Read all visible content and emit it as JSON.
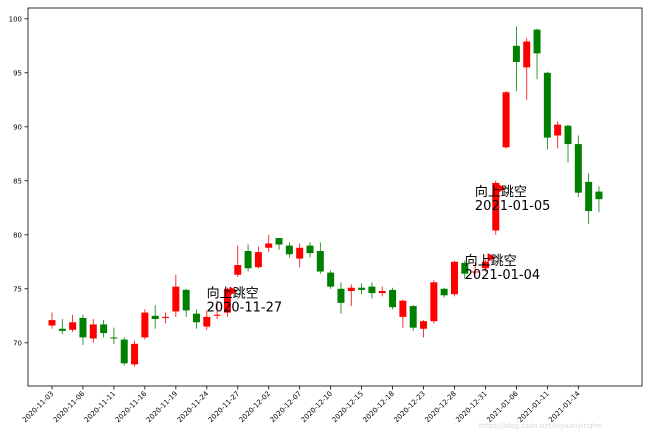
{
  "chart_data": {
    "type": "candlestick",
    "title": "",
    "xlabel": "",
    "ylabel": "",
    "ylim": [
      66,
      101
    ],
    "yticks": [
      70,
      75,
      80,
      85,
      90,
      95,
      100
    ],
    "colors": {
      "up": "#ff0000",
      "down": "#008000",
      "marker": "#ff0000"
    },
    "x_tick_labels": [
      "2020-11-03",
      "2020-11-06",
      "2020-11-11",
      "2020-11-16",
      "2020-11-19",
      "2020-11-24",
      "2020-11-27",
      "2020-12-02",
      "2020-12-07",
      "2020-12-10",
      "2020-12-15",
      "2020-12-18",
      "2020-12-23",
      "2020-12-28",
      "2020-12-31",
      "2021-01-06",
      "2021-01-11",
      "2021-01-14"
    ],
    "x_tick_index": [
      0,
      3,
      6,
      9,
      12,
      15,
      18,
      21,
      24,
      27,
      30,
      33,
      36,
      39,
      42,
      45,
      48,
      51
    ],
    "candles": [
      {
        "date": "2020-11-03",
        "open": 71.6,
        "close": 72.1,
        "high": 72.8,
        "low": 71.3
      },
      {
        "date": "2020-11-04",
        "open": 71.3,
        "close": 71.1,
        "high": 72.2,
        "low": 70.8
      },
      {
        "date": "2020-11-05",
        "open": 71.2,
        "close": 71.9,
        "high": 72.6,
        "low": 71.0
      },
      {
        "date": "2020-11-06",
        "open": 72.3,
        "close": 70.5,
        "high": 72.6,
        "low": 69.8
      },
      {
        "date": "2020-11-09",
        "open": 70.4,
        "close": 71.7,
        "high": 72.2,
        "low": 70.0
      },
      {
        "date": "2020-11-10",
        "open": 71.7,
        "close": 70.9,
        "high": 72.1,
        "low": 70.5
      },
      {
        "date": "2020-11-11",
        "open": 70.5,
        "close": 70.4,
        "high": 71.4,
        "low": 69.9
      },
      {
        "date": "2020-11-12",
        "open": 70.3,
        "close": 68.1,
        "high": 70.5,
        "low": 67.9
      },
      {
        "date": "2020-11-13",
        "open": 68.0,
        "close": 69.9,
        "high": 70.2,
        "low": 67.8
      },
      {
        "date": "2020-11-16",
        "open": 70.5,
        "close": 72.8,
        "high": 73.1,
        "low": 70.3
      },
      {
        "date": "2020-11-17",
        "open": 72.5,
        "close": 72.2,
        "high": 73.5,
        "low": 71.3
      },
      {
        "date": "2020-11-18",
        "open": 72.3,
        "close": 72.4,
        "high": 72.8,
        "low": 71.8
      },
      {
        "date": "2020-11-19",
        "open": 72.9,
        "close": 75.2,
        "high": 76.3,
        "low": 72.4
      },
      {
        "date": "2020-11-20",
        "open": 74.9,
        "close": 73.0,
        "high": 75.0,
        "low": 72.4
      },
      {
        "date": "2020-11-23",
        "open": 72.7,
        "close": 71.9,
        "high": 73.1,
        "low": 71.3
      },
      {
        "date": "2020-11-24",
        "open": 71.5,
        "close": 72.4,
        "high": 73.0,
        "low": 71.2
      },
      {
        "date": "2020-11-25",
        "open": 72.5,
        "close": 72.6,
        "high": 73.9,
        "low": 72.2
      },
      {
        "date": "2020-11-26",
        "open": 72.8,
        "close": 75.0,
        "high": 75.1,
        "low": 72.4
      },
      {
        "date": "2020-11-27",
        "open": 76.3,
        "close": 77.2,
        "high": 79.0,
        "low": 76.1
      },
      {
        "date": "2020-11-30",
        "open": 78.5,
        "close": 76.9,
        "high": 79.1,
        "low": 76.6
      },
      {
        "date": "2020-12-01",
        "open": 77.0,
        "close": 78.4,
        "high": 78.9,
        "low": 76.9
      },
      {
        "date": "2020-12-02",
        "open": 78.8,
        "close": 79.2,
        "high": 80.0,
        "low": 78.4
      },
      {
        "date": "2020-12-03",
        "open": 79.7,
        "close": 79.1,
        "high": 79.7,
        "low": 78.6
      },
      {
        "date": "2020-12-04",
        "open": 79.0,
        "close": 78.2,
        "high": 79.3,
        "low": 77.9
      },
      {
        "date": "2020-12-07",
        "open": 77.8,
        "close": 78.8,
        "high": 79.2,
        "low": 77.0
      },
      {
        "date": "2020-12-08",
        "open": 79.0,
        "close": 78.3,
        "high": 79.3,
        "low": 77.9
      },
      {
        "date": "2020-12-09",
        "open": 78.5,
        "close": 76.6,
        "high": 79.3,
        "low": 76.4
      },
      {
        "date": "2020-12-10",
        "open": 76.5,
        "close": 75.2,
        "high": 76.7,
        "low": 75.0
      },
      {
        "date": "2020-12-11",
        "open": 75.0,
        "close": 73.7,
        "high": 75.6,
        "low": 72.7
      },
      {
        "date": "2020-12-14",
        "open": 74.8,
        "close": 75.1,
        "high": 75.4,
        "low": 73.4
      },
      {
        "date": "2020-12-15",
        "open": 75.1,
        "close": 74.9,
        "high": 75.5,
        "low": 74.5
      },
      {
        "date": "2020-12-16",
        "open": 75.2,
        "close": 74.6,
        "high": 75.6,
        "low": 74.1
      },
      {
        "date": "2020-12-17",
        "open": 74.6,
        "close": 74.8,
        "high": 75.2,
        "low": 74.3
      },
      {
        "date": "2020-12-18",
        "open": 74.9,
        "close": 73.3,
        "high": 75.1,
        "low": 73.1
      },
      {
        "date": "2020-12-21",
        "open": 72.4,
        "close": 73.9,
        "high": 74.0,
        "low": 71.4
      },
      {
        "date": "2020-12-22",
        "open": 73.4,
        "close": 71.4,
        "high": 73.5,
        "low": 71.1
      },
      {
        "date": "2020-12-23",
        "open": 71.3,
        "close": 72.0,
        "high": 72.1,
        "low": 70.5
      },
      {
        "date": "2020-12-24",
        "open": 72.0,
        "close": 75.6,
        "high": 75.8,
        "low": 71.8
      },
      {
        "date": "2020-12-25",
        "open": 75.0,
        "close": 74.4,
        "high": 75.1,
        "low": 74.2
      },
      {
        "date": "2020-12-28",
        "open": 74.5,
        "close": 77.5,
        "high": 77.6,
        "low": 74.3
      },
      {
        "date": "2020-12-29",
        "open": 77.4,
        "close": 76.4,
        "high": 77.6,
        "low": 75.9
      },
      {
        "date": "2020-12-30",
        "open": 76.6,
        "close": 76.6,
        "high": 77.4,
        "low": 76.2
      },
      {
        "date": "2020-12-31",
        "open": 76.9,
        "close": 77.5,
        "high": 77.7,
        "low": 76.6
      },
      {
        "date": "2021-01-04",
        "open": 80.4,
        "close": 84.8,
        "high": 85.0,
        "low": 80.0
      },
      {
        "date": "2021-01-05",
        "open": 88.1,
        "close": 93.2,
        "high": 93.3,
        "low": 88.0
      },
      {
        "date": "2021-01-06",
        "open": 97.5,
        "close": 96.0,
        "high": 99.3,
        "low": 93.3
      },
      {
        "date": "2021-01-07",
        "open": 95.5,
        "close": 97.9,
        "high": 98.2,
        "low": 92.5
      },
      {
        "date": "2021-01-08",
        "open": 99.0,
        "close": 96.8,
        "high": 99.1,
        "low": 94.4
      },
      {
        "date": "2021-01-11",
        "open": 95.0,
        "close": 89.0,
        "high": 95.1,
        "low": 87.9
      },
      {
        "date": "2021-01-12",
        "open": 89.2,
        "close": 90.2,
        "high": 90.5,
        "low": 88.0
      },
      {
        "date": "2021-01-13",
        "open": 90.1,
        "close": 88.4,
        "high": 90.2,
        "low": 86.7
      },
      {
        "date": "2021-01-14",
        "open": 88.4,
        "close": 83.9,
        "high": 89.2,
        "low": 83.5
      },
      {
        "date": "2021-01-15",
        "open": 84.9,
        "close": 82.2,
        "high": 85.7,
        "low": 81.0
      },
      {
        "date": "2021-01-18",
        "open": 84.0,
        "close": 83.3,
        "high": 84.5,
        "low": 82.1
      }
    ],
    "annotations": [
      {
        "label": "向上跳空",
        "date": "2020-11-27",
        "marker_index": 17.5,
        "marker_y": 74.8,
        "text_y": 74.2
      },
      {
        "label": "向上跳空",
        "date": "2021-01-04",
        "marker_index": 42.5,
        "marker_y": 77.9,
        "text_y": 77.2
      },
      {
        "label": "向上跳空",
        "date": "2021-01-05",
        "marker_index": 43.5,
        "marker_y": 84.3,
        "text_y": 83.6
      }
    ]
  },
  "watermark": "https://blog.csdn.net/luyuanyinghe"
}
